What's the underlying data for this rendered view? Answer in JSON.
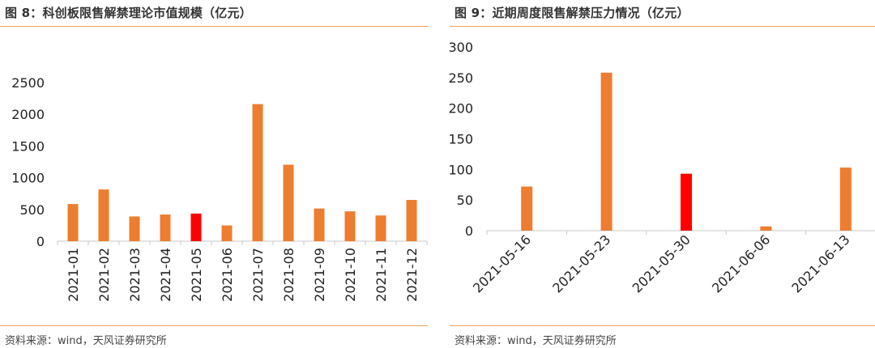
{
  "figures": [
    {
      "title": "图 8：科创板限售解禁理论市值规模（亿元）",
      "source": "资料来源：wind，天风证券研究所"
    },
    {
      "title": "图 9：近期周度限售解禁压力情况（亿元）",
      "source": "资料来源：wind，天风证券研究所"
    }
  ],
  "colors": {
    "bar": "#ed7d31",
    "highlight": "#ff0000",
    "rule": "#f0a35e"
  },
  "chart_data": [
    {
      "type": "bar",
      "title": "",
      "xlabel": "",
      "ylabel": "",
      "categories": [
        "2021-01",
        "2021-02",
        "2021-03",
        "2021-04",
        "2021-05",
        "2021-06",
        "2021-07",
        "2021-08",
        "2021-09",
        "2021-10",
        "2021-11",
        "2021-12"
      ],
      "values": [
        585,
        815,
        390,
        420,
        435,
        248,
        2160,
        1205,
        515,
        470,
        405,
        650
      ],
      "highlight_category": "2021-05",
      "ylim": [
        0,
        2500
      ],
      "yticks": [
        0,
        500,
        1000,
        1500,
        2000,
        2500
      ],
      "grid": false,
      "legend": "none"
    },
    {
      "type": "bar",
      "title": "",
      "xlabel": "",
      "ylabel": "",
      "categories": [
        "2021-05-16",
        "2021-05-23",
        "2021-05-30",
        "2021-06-06",
        "2021-06-13"
      ],
      "values": [
        72,
        258,
        93,
        7,
        103
      ],
      "highlight_category": "2021-05-30",
      "ylim": [
        0,
        300
      ],
      "yticks": [
        0,
        50,
        100,
        150,
        200,
        250,
        300
      ],
      "grid": false,
      "legend": "none"
    }
  ]
}
